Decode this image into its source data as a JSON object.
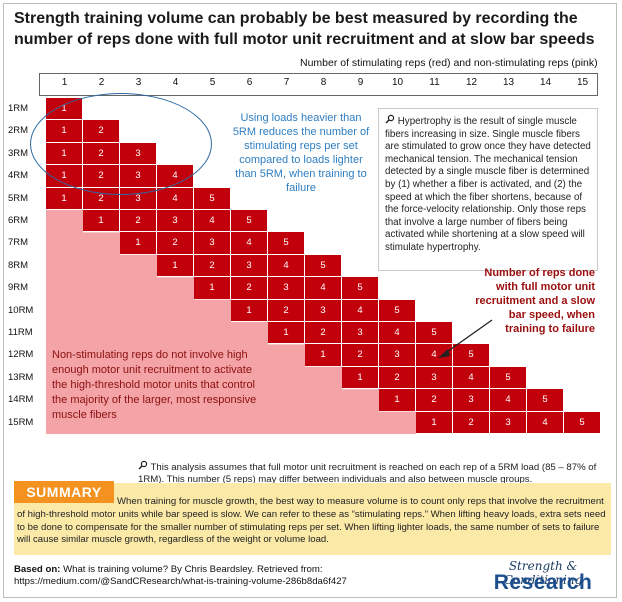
{
  "title": "Strength training volume can probably be best measured by recording the number of reps done with full motor unit recruitment and at slow bar speeds",
  "column_caption": "Number of stimulating reps (red) and non-stimulating reps (pink)",
  "colors": {
    "red": "#c2000b",
    "pink": "#f4a3a7",
    "light_pink": "#f9c8ca",
    "grid_line": "#ffffff",
    "summary_bg": "#fbe9a8",
    "summary_label": "#f3921e",
    "blue": "#2f7ec1"
  },
  "columns": [
    "1",
    "2",
    "3",
    "4",
    "5",
    "6",
    "7",
    "8",
    "9",
    "10",
    "11",
    "12",
    "13",
    "14",
    "15"
  ],
  "rows": [
    "1RM",
    "2RM",
    "3RM",
    "4RM",
    "5RM",
    "6RM",
    "7RM",
    "8RM",
    "9RM",
    "10RM",
    "11RM",
    "12RM",
    "13RM",
    "14RM",
    "15RM"
  ],
  "cell_labels": [
    "1",
    "2",
    "3",
    "4",
    "5"
  ],
  "blue_note": "Using loads heavier than 5RM reduces the number of stimulating reps per set compared to loads lighter than 5RM, when training to failure",
  "hypertrophy_note": "Hypertrophy is the result of single muscle fibers increasing in size. Single muscle fibers are stimulated to grow once they have detected mechanical tension. The mechanical tension detected by a single muscle fiber is determined by (1) whether a fiber is activated, and (2) the speed at which the fiber shortens, because of the force-velocity relationship. Only those reps that involve a large number of fibers being activated while shortening at a slow speed will stimulate hypertrophy.",
  "red_note": "Number of reps done with full motor unit recruitment and a slow bar speed, when training to failure",
  "pink_note": "Non-stimulating reps do not involve high enough motor unit recruitment to activate the high-threshold motor units that control the majority of the larger, most responsive muscle fibers",
  "assumption_note": "This analysis assumes that full motor unit recruitment is reached on each rep of a 5RM load (85 – 87% of 1RM). This number (5 reps) may differ between individuals and also between muscle groups.",
  "summary": {
    "label": "SUMMARY",
    "text": "When training for muscle growth, the best way to measure volume is to count only reps that involve the recruitment of high-threshold motor units while bar speed is slow. We can refer to these as “stimulating reps.” When lifting heavy loads, extra sets need to be done to compensate for the smaller number of stimulating reps per set. When lifting lighter loads, the same number of sets to failure will cause similar muscle growth, regardless of the weight or volume load."
  },
  "source": {
    "prefix": "Based on:",
    "text": "What is training volume? By Chris Beardsley. Retrieved from:",
    "url": "https://medium.com/@SandCResearch/what-is-training-volume-286b8da6f427"
  },
  "logo": {
    "top": "Strength & Conditioning",
    "bottom": "Research"
  },
  "icons": {
    "note_icon": "magnifier-icon"
  }
}
